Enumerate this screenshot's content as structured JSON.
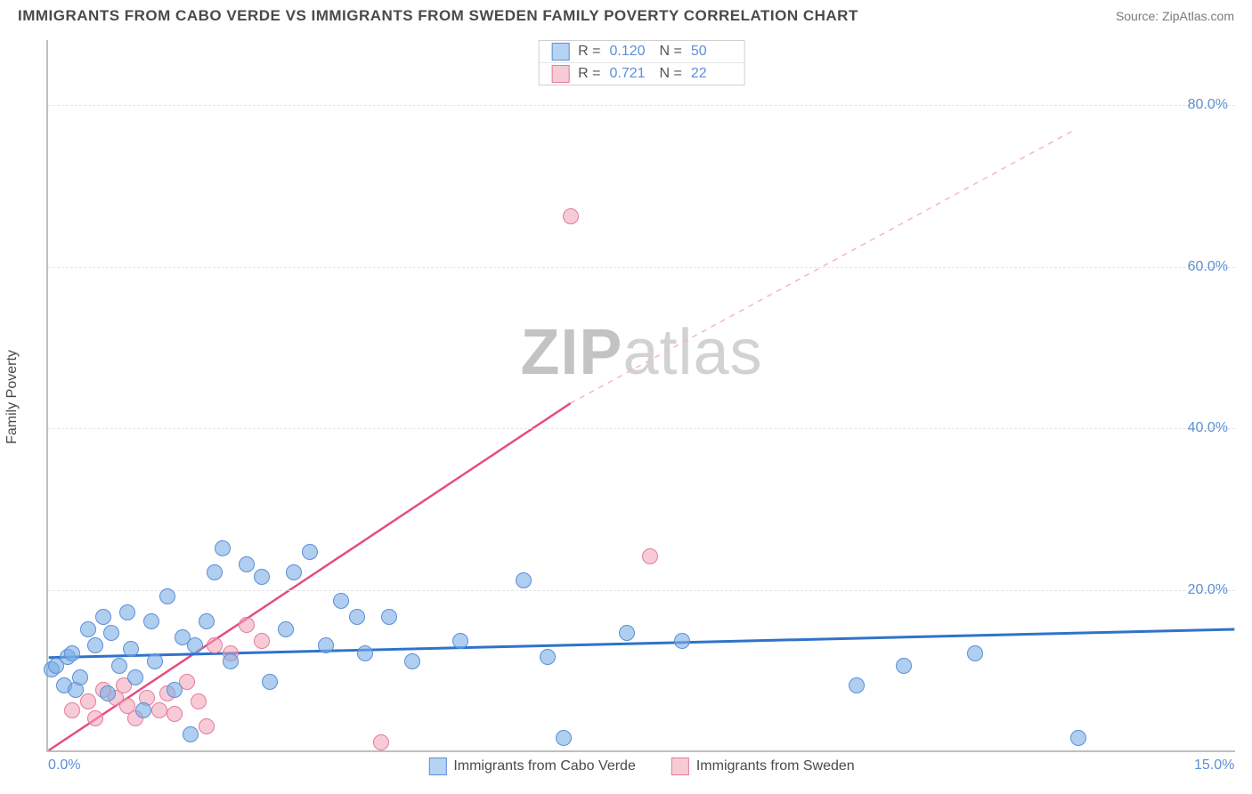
{
  "header": {
    "title": "IMMIGRANTS FROM CABO VERDE VS IMMIGRANTS FROM SWEDEN FAMILY POVERTY CORRELATION CHART",
    "source": "Source: ZipAtlas.com"
  },
  "chart": {
    "type": "scatter",
    "yaxis_title": "Family Poverty",
    "x_range": [
      0,
      15
    ],
    "y_range": [
      0,
      88
    ],
    "x_ticks": [
      {
        "value": 0,
        "label": "0.0%"
      },
      {
        "value": 15,
        "label": "15.0%"
      }
    ],
    "y_ticks": [
      {
        "value": 20,
        "label": "20.0%"
      },
      {
        "value": 40,
        "label": "40.0%"
      },
      {
        "value": 60,
        "label": "60.0%"
      },
      {
        "value": 80,
        "label": "80.0%"
      }
    ],
    "grid_values": [
      20,
      40,
      60,
      80
    ],
    "background_color": "#ffffff",
    "grid_color": "#e5e5e5",
    "axis_color": "#bfbfbf",
    "marker_radius": 9,
    "series": {
      "blue": {
        "label": "Immigrants from Cabo Verde",
        "fill": "rgba(122,174,230,0.6)",
        "stroke": "#5b8fd6",
        "R": "0.120",
        "N": "50",
        "trend": {
          "x1": 0,
          "y1": 11.5,
          "x2": 15,
          "y2": 15.0,
          "color": "#2f73c9",
          "width": 3,
          "dash": "none"
        },
        "points": [
          [
            0.05,
            10
          ],
          [
            0.1,
            10.5
          ],
          [
            0.2,
            8
          ],
          [
            0.25,
            11.5
          ],
          [
            0.3,
            12
          ],
          [
            0.35,
            7.5
          ],
          [
            0.4,
            9
          ],
          [
            0.5,
            15
          ],
          [
            0.6,
            13
          ],
          [
            0.7,
            16.5
          ],
          [
            0.75,
            7
          ],
          [
            0.8,
            14.5
          ],
          [
            0.9,
            10.5
          ],
          [
            1.0,
            17
          ],
          [
            1.05,
            12.5
          ],
          [
            1.1,
            9
          ],
          [
            1.2,
            5
          ],
          [
            1.3,
            16
          ],
          [
            1.35,
            11
          ],
          [
            1.5,
            19
          ],
          [
            1.6,
            7.5
          ],
          [
            1.7,
            14
          ],
          [
            1.8,
            2
          ],
          [
            1.85,
            13
          ],
          [
            2.0,
            16
          ],
          [
            2.1,
            22
          ],
          [
            2.2,
            25
          ],
          [
            2.3,
            11
          ],
          [
            2.5,
            23
          ],
          [
            2.7,
            21.5
          ],
          [
            2.8,
            8.5
          ],
          [
            3.0,
            15
          ],
          [
            3.1,
            22
          ],
          [
            3.3,
            24.5
          ],
          [
            3.5,
            13
          ],
          [
            3.7,
            18.5
          ],
          [
            3.9,
            16.5
          ],
          [
            4.0,
            12
          ],
          [
            4.3,
            16.5
          ],
          [
            4.6,
            11
          ],
          [
            5.2,
            13.5
          ],
          [
            6.0,
            21
          ],
          [
            6.3,
            11.5
          ],
          [
            6.5,
            1.5
          ],
          [
            7.3,
            14.5
          ],
          [
            8.0,
            13.5
          ],
          [
            10.2,
            8
          ],
          [
            10.8,
            10.5
          ],
          [
            11.7,
            12
          ],
          [
            13.0,
            1.5
          ]
        ]
      },
      "pink": {
        "label": "Immigrants from Sweden",
        "fill": "rgba(240,160,180,0.55)",
        "stroke": "#e67a9a",
        "R": "0.721",
        "N": "22",
        "trend_solid": {
          "x1": 0,
          "y1": 0,
          "x2": 6.6,
          "y2": 43,
          "color": "#e84c7f",
          "width": 2.5
        },
        "trend_dash": {
          "x1": 6.6,
          "y1": 43,
          "x2": 13.0,
          "y2": 77,
          "color": "#f4b6c6",
          "width": 1.5
        },
        "points": [
          [
            0.3,
            5
          ],
          [
            0.5,
            6
          ],
          [
            0.6,
            4
          ],
          [
            0.7,
            7.5
          ],
          [
            0.85,
            6.5
          ],
          [
            0.95,
            8
          ],
          [
            1.0,
            5.5
          ],
          [
            1.1,
            4
          ],
          [
            1.25,
            6.5
          ],
          [
            1.4,
            5
          ],
          [
            1.5,
            7
          ],
          [
            1.6,
            4.5
          ],
          [
            1.75,
            8.5
          ],
          [
            1.9,
            6
          ],
          [
            2.0,
            3
          ],
          [
            2.1,
            13
          ],
          [
            2.3,
            12
          ],
          [
            2.5,
            15.5
          ],
          [
            2.7,
            13.5
          ],
          [
            4.2,
            1
          ],
          [
            6.6,
            66
          ],
          [
            7.6,
            24
          ]
        ]
      }
    },
    "watermark": {
      "prefix": "ZIP",
      "suffix": "atlas"
    }
  }
}
